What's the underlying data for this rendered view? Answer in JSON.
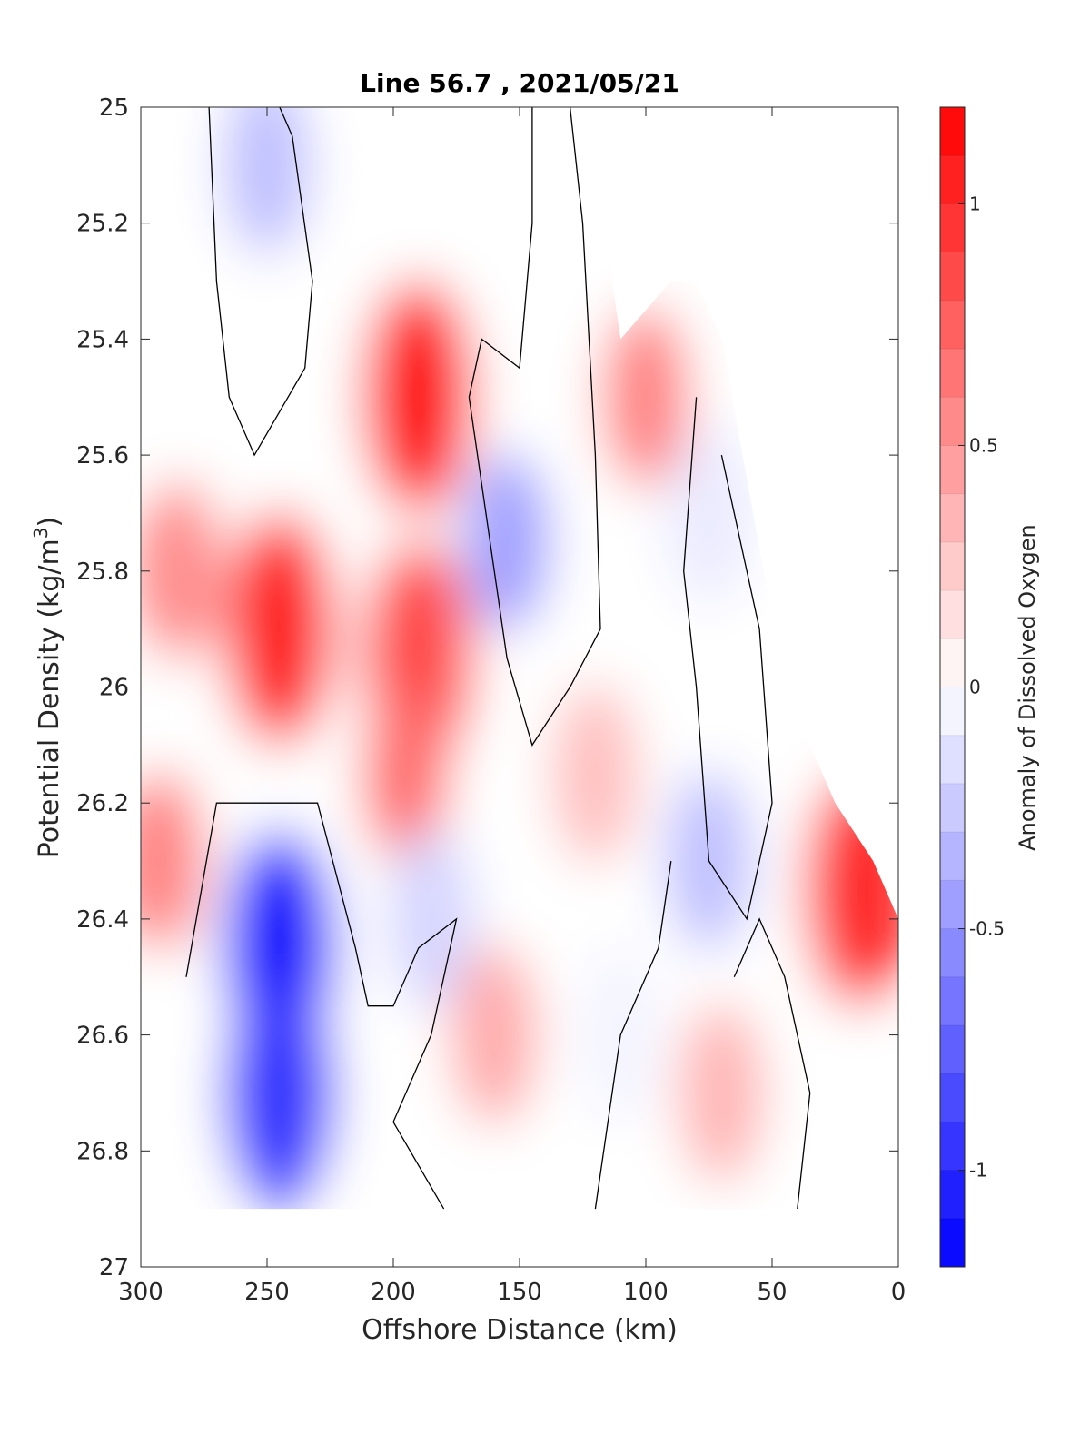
{
  "chart_data": {
    "type": "heatmap",
    "subtype": "filled-contour",
    "title": "Line 56.7 , 2021/05/21",
    "xlabel": "Offshore Distance (km)",
    "ylabel_main": "Potential Density (kg/m",
    "ylabel_sup": "3",
    "ylabel_close": ")",
    "colorbar_label": "Anomaly of Dissolved Oxygen",
    "xlim": [
      300,
      0
    ],
    "ylim": [
      27,
      25
    ],
    "x_reversed": true,
    "y_reversed": true,
    "xticks": [
      300,
      250,
      200,
      150,
      100,
      50,
      0
    ],
    "xtick_labels": [
      "300",
      "250",
      "200",
      "150",
      "100",
      "50",
      "0"
    ],
    "yticks": [
      25,
      25.2,
      25.4,
      25.6,
      25.8,
      26,
      26.2,
      26.4,
      26.6,
      26.8,
      27
    ],
    "ytick_labels": [
      "25",
      "25.2",
      "25.4",
      "25.6",
      "25.8",
      "26",
      "26.2",
      "26.4",
      "26.6",
      "26.8",
      "27"
    ],
    "colorbar_range": [
      -1.2,
      1.2
    ],
    "colorbar_ticks": [
      1,
      0.5,
      0,
      -0.5,
      -1
    ],
    "colorbar_tick_labels": [
      "1",
      "0.5",
      "0",
      "-0.5",
      "-1"
    ],
    "color_min": "#0000ff",
    "color_max": "#ff0000",
    "color_mid": "#ffffff",
    "zero_contour_color": "#000000",
    "data_coverage_density_max": 26.9,
    "features": [
      {
        "center": [
          245,
          25.9
        ],
        "value": 1.05
      },
      {
        "center": [
          190,
          25.5
        ],
        "value": 1.1
      },
      {
        "center": [
          190,
          25.95
        ],
        "value": 0.85
      },
      {
        "center": [
          195,
          26.15
        ],
        "value": 0.7
      },
      {
        "center": [
          292,
          26.3
        ],
        "value": 0.6
      },
      {
        "center": [
          285,
          25.8
        ],
        "value": 0.55
      },
      {
        "center": [
          100,
          25.5
        ],
        "value": 0.6
      },
      {
        "center": [
          160,
          26.6
        ],
        "value": 0.4
      },
      {
        "center": [
          120,
          26.15
        ],
        "value": 0.3
      },
      {
        "center": [
          70,
          26.7
        ],
        "value": 0.35
      },
      {
        "center": [
          15,
          26.35
        ],
        "value": 1.0
      },
      {
        "center": [
          250,
          25.1
        ],
        "value": -0.3
      },
      {
        "center": [
          155,
          25.75
        ],
        "value": -0.45
      },
      {
        "center": [
          245,
          26.45
        ],
        "value": -1.1
      },
      {
        "center": [
          245,
          26.7
        ],
        "value": -0.95
      },
      {
        "center": [
          185,
          26.4
        ],
        "value": -0.2
      },
      {
        "center": [
          75,
          26.3
        ],
        "value": -0.3
      },
      {
        "center": [
          75,
          25.7
        ],
        "value": -0.1
      },
      {
        "center": [
          110,
          26.6
        ],
        "value": -0.05
      }
    ]
  }
}
